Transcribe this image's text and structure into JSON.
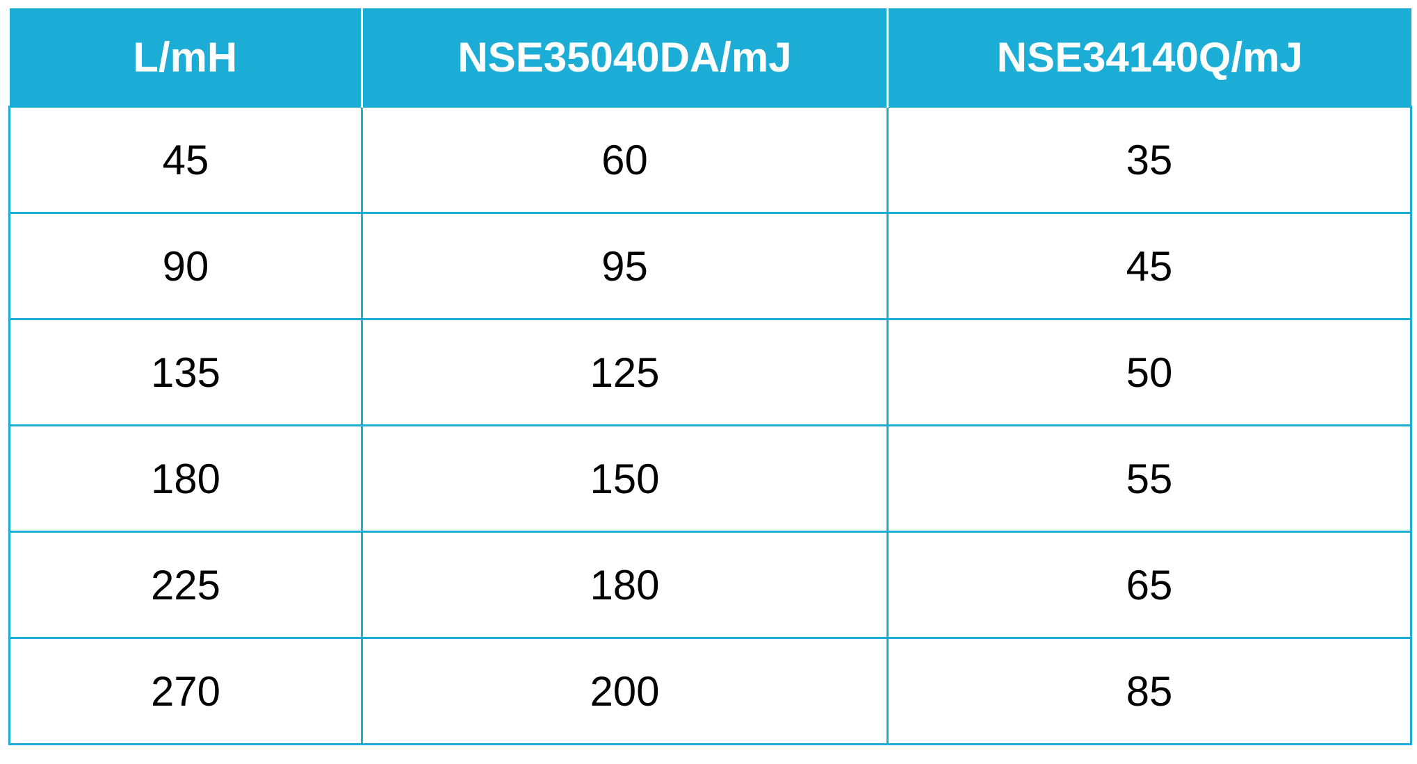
{
  "table": {
    "headers": [
      "L/mH",
      "NSE35040DA/mJ",
      "NSE34140Q/mJ"
    ],
    "rows": [
      [
        "45",
        "60",
        "35"
      ],
      [
        "90",
        "95",
        "45"
      ],
      [
        "135",
        "125",
        "50"
      ],
      [
        "180",
        "150",
        "55"
      ],
      [
        "225",
        "180",
        "65"
      ],
      [
        "270",
        "200",
        "85"
      ]
    ],
    "header_color": "#1badd6"
  }
}
